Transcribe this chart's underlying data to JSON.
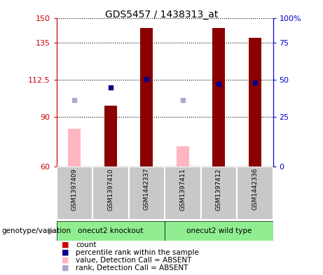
{
  "title": "GDS5457 / 1438313_at",
  "samples": [
    "GSM1397409",
    "GSM1397410",
    "GSM1442337",
    "GSM1397411",
    "GSM1397412",
    "GSM1442336"
  ],
  "groups": [
    {
      "label": "onecut2 knockout",
      "start": 0,
      "end": 2,
      "color": "#90EE90"
    },
    {
      "label": "onecut2 wild type",
      "start": 3,
      "end": 5,
      "color": "#90EE90"
    }
  ],
  "count_bars": [
    null,
    97,
    144,
    null,
    144,
    138
  ],
  "absent_bars": [
    83,
    null,
    null,
    72,
    null,
    null
  ],
  "percentile_rank": [
    null,
    108,
    113,
    null,
    110,
    111
  ],
  "absent_rank": [
    100,
    null,
    null,
    100,
    null,
    null
  ],
  "ylim": [
    60,
    150
  ],
  "yticks_left": [
    60,
    90,
    112.5,
    135,
    150
  ],
  "yticks_right_vals": [
    60,
    90,
    112.5,
    135,
    150
  ],
  "yticks_right_labels": [
    "0",
    "25",
    "50",
    "75",
    "100%"
  ],
  "bar_color": "#8B0000",
  "absent_bar_color": "#FFB6C1",
  "rank_color": "#00008B",
  "absent_rank_color": "#AAAACC",
  "left_axis_color": "#CC0000",
  "right_axis_color": "#0000CC",
  "plot_bg": "#FFFFFF",
  "legend_items": [
    {
      "color": "#CC0000",
      "label": "count"
    },
    {
      "color": "#00008B",
      "label": "percentile rank within the sample"
    },
    {
      "color": "#FFB6C1",
      "label": "value, Detection Call = ABSENT"
    },
    {
      "color": "#AAAACC",
      "label": "rank, Detection Call = ABSENT"
    }
  ],
  "group_area_bg": "#C8C8C8",
  "xlabel_text": "genotype/variation",
  "bar_width": 0.35
}
